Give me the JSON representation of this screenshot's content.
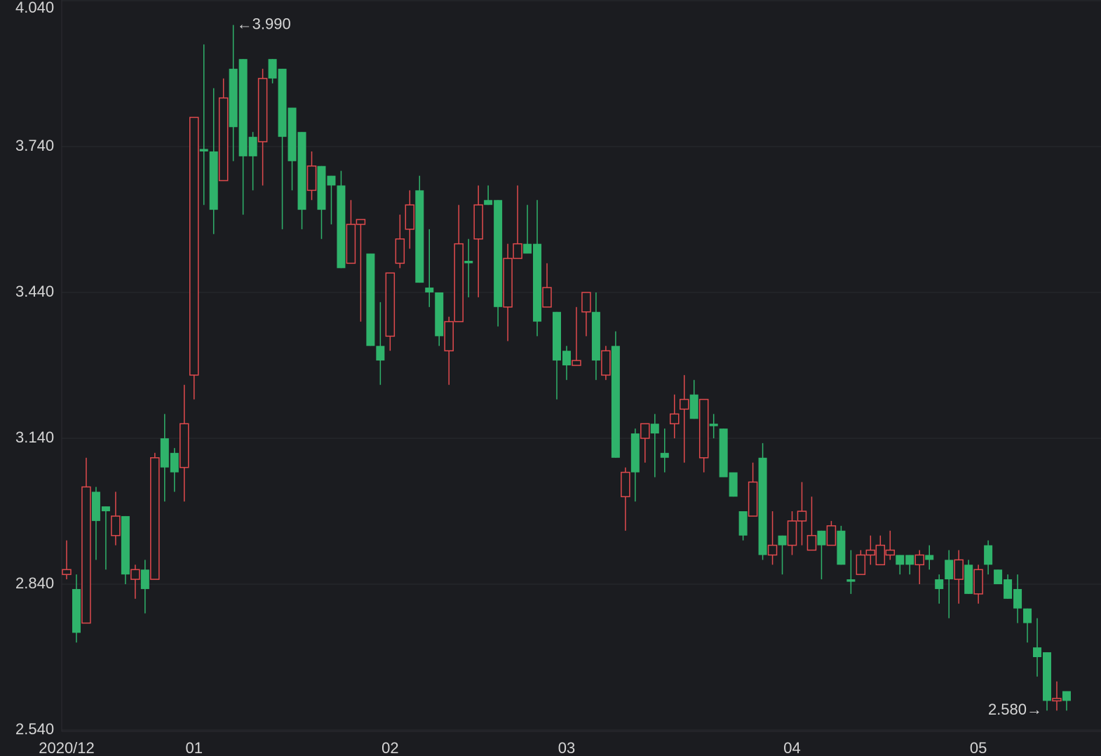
{
  "chart_data": {
    "type": "candlestick",
    "categories": [
      "2020/12",
      null,
      null,
      null,
      null,
      null,
      null,
      null,
      null,
      null,
      null,
      null,
      null,
      "01",
      null,
      null,
      null,
      null,
      null,
      null,
      null,
      null,
      null,
      null,
      null,
      null,
      null,
      null,
      null,
      null,
      null,
      null,
      null,
      "02",
      null,
      null,
      null,
      null,
      null,
      null,
      null,
      null,
      null,
      null,
      null,
      null,
      null,
      null,
      null,
      null,
      null,
      "03",
      null,
      null,
      null,
      null,
      null,
      null,
      null,
      null,
      null,
      null,
      null,
      null,
      null,
      null,
      null,
      null,
      null,
      null,
      null,
      null,
      null,
      null,
      "04",
      null,
      null,
      null,
      null,
      null,
      null,
      null,
      null,
      null,
      null,
      null,
      null,
      null,
      null,
      null,
      null,
      null,
      null,
      "05",
      null,
      null,
      null,
      null,
      null,
      null,
      null,
      null,
      null
    ],
    "open": [
      2.86,
      2.83,
      2.76,
      3.03,
      3.0,
      2.94,
      2.98,
      2.85,
      2.87,
      2.85,
      3.14,
      3.11,
      3.08,
      3.27,
      3.735,
      3.73,
      3.67,
      3.9,
      3.92,
      3.76,
      3.75,
      3.92,
      3.9,
      3.82,
      3.77,
      3.65,
      3.7,
      3.68,
      3.66,
      3.5,
      3.58,
      3.52,
      3.33,
      3.35,
      3.5,
      3.57,
      3.65,
      3.45,
      3.44,
      3.32,
      3.38,
      3.505,
      3.55,
      3.63,
      3.63,
      3.41,
      3.51,
      3.54,
      3.54,
      3.41,
      3.4,
      3.32,
      3.29,
      3.4,
      3.4,
      3.27,
      3.33,
      3.02,
      3.15,
      3.14,
      3.17,
      3.11,
      3.17,
      3.2,
      3.23,
      3.1,
      3.17,
      3.16,
      3.07,
      2.99,
      2.98,
      3.1,
      2.9,
      2.94,
      2.92,
      2.97,
      2.91,
      2.95,
      2.92,
      2.95,
      2.85,
      2.86,
      2.9,
      2.88,
      2.9,
      2.9,
      2.9,
      2.88,
      2.9,
      2.85,
      2.89,
      2.85,
      2.88,
      2.82,
      2.92,
      2.87,
      2.85,
      2.83,
      2.79,
      2.71,
      2.7,
      2.6,
      2.62
    ],
    "high": [
      2.93,
      2.86,
      3.1,
      3.04,
      3.0,
      3.03,
      2.98,
      2.88,
      2.89,
      3.11,
      3.19,
      3.12,
      3.25,
      3.8,
      3.95,
      3.86,
      3.88,
      3.99,
      3.92,
      3.77,
      3.9,
      3.92,
      3.9,
      3.82,
      3.77,
      3.73,
      3.7,
      3.68,
      3.69,
      3.63,
      3.59,
      3.52,
      3.42,
      3.48,
      3.6,
      3.65,
      3.68,
      3.57,
      3.44,
      3.39,
      3.62,
      3.55,
      3.66,
      3.66,
      3.63,
      3.54,
      3.66,
      3.62,
      3.63,
      3.5,
      3.4,
      3.33,
      3.41,
      3.44,
      3.44,
      3.33,
      3.36,
      3.08,
      3.16,
      3.17,
      3.19,
      3.16,
      3.23,
      3.27,
      3.26,
      3.22,
      3.19,
      3.16,
      3.07,
      2.99,
      3.09,
      3.13,
      2.99,
      2.94,
      2.99,
      3.05,
      3.02,
      2.95,
      2.97,
      2.96,
      2.91,
      2.91,
      2.94,
      2.94,
      2.95,
      2.9,
      2.9,
      2.91,
      2.92,
      2.86,
      2.91,
      2.91,
      2.89,
      2.88,
      2.93,
      2.87,
      2.86,
      2.86,
      2.79,
      2.77,
      2.7,
      2.64,
      2.62
    ],
    "low": [
      2.85,
      2.72,
      2.76,
      2.89,
      2.87,
      2.92,
      2.84,
      2.81,
      2.78,
      2.85,
      3.01,
      3.03,
      3.01,
      3.22,
      3.62,
      3.56,
      3.67,
      3.71,
      3.6,
      3.65,
      3.66,
      3.87,
      3.57,
      3.65,
      3.57,
      3.63,
      3.55,
      3.58,
      3.49,
      3.5,
      3.38,
      3.33,
      3.25,
      3.32,
      3.49,
      3.53,
      3.46,
      3.41,
      3.33,
      3.25,
      3.38,
      3.43,
      3.43,
      3.62,
      3.37,
      3.34,
      3.51,
      3.52,
      3.35,
      3.41,
      3.22,
      3.26,
      3.29,
      3.35,
      3.26,
      3.26,
      3.1,
      2.95,
      3.01,
      3.09,
      3.06,
      3.07,
      3.14,
      3.09,
      3.18,
      3.07,
      3.14,
      3.06,
      3.02,
      2.93,
      2.98,
      2.89,
      2.88,
      2.86,
      2.9,
      2.92,
      2.91,
      2.85,
      2.92,
      2.88,
      2.82,
      2.86,
      2.88,
      2.88,
      2.89,
      2.86,
      2.86,
      2.84,
      2.87,
      2.8,
      2.77,
      2.8,
      2.82,
      2.8,
      2.86,
      2.84,
      2.81,
      2.76,
      2.72,
      2.65,
      2.58,
      2.58,
      2.58
    ],
    "close": [
      2.87,
      2.74,
      3.04,
      2.97,
      2.99,
      2.98,
      2.86,
      2.87,
      2.83,
      3.1,
      3.08,
      3.07,
      3.17,
      3.8,
      3.73,
      3.61,
      3.84,
      3.78,
      3.72,
      3.72,
      3.88,
      3.88,
      3.76,
      3.71,
      3.61,
      3.7,
      3.61,
      3.66,
      3.49,
      3.58,
      3.59,
      3.33,
      3.3,
      3.48,
      3.55,
      3.62,
      3.46,
      3.44,
      3.35,
      3.38,
      3.54,
      3.5,
      3.62,
      3.62,
      3.41,
      3.51,
      3.54,
      3.52,
      3.38,
      3.45,
      3.3,
      3.29,
      3.3,
      3.44,
      3.3,
      3.32,
      3.1,
      3.07,
      3.07,
      3.17,
      3.15,
      3.1,
      3.19,
      3.22,
      3.18,
      3.22,
      3.165,
      3.06,
      3.02,
      2.94,
      3.05,
      2.9,
      2.92,
      2.92,
      2.97,
      2.99,
      2.94,
      2.92,
      2.96,
      2.88,
      2.845,
      2.9,
      2.91,
      2.92,
      2.91,
      2.88,
      2.88,
      2.9,
      2.89,
      2.83,
      2.85,
      2.89,
      2.82,
      2.87,
      2.88,
      2.84,
      2.81,
      2.79,
      2.76,
      2.69,
      2.6,
      2.605,
      2.6
    ],
    "up_color": "#e04a4d",
    "down_color": "#2fb36b",
    "ylim": [
      2.54,
      4.04
    ],
    "yticks": [
      {
        "value": 2.54,
        "label": "2.540"
      },
      {
        "value": 2.84,
        "label": "2.840"
      },
      {
        "value": 3.14,
        "label": "3.140"
      },
      {
        "value": 3.44,
        "label": "3.440"
      },
      {
        "value": 3.74,
        "label": "3.740"
      },
      {
        "value": 4.04,
        "label": "4.040"
      }
    ],
    "grid": true,
    "max_label": {
      "value": 3.99,
      "label": "←3.990"
    },
    "min_label": {
      "value": 2.58,
      "label": "2.580→"
    }
  }
}
